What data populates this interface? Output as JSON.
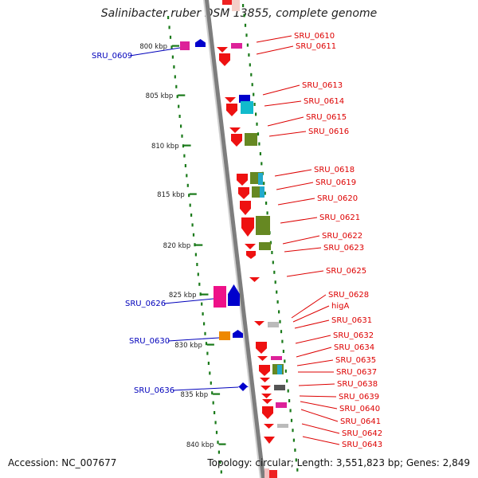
{
  "title": "Salinibacter ruber DSM 13855, complete genome",
  "footer": {
    "accession": "Accession: NC_007677",
    "summary": "Topology: circular; Length: 3,551,823 bp; Genes: 2,849"
  },
  "colors": {
    "forward_label": "#0000bb",
    "reverse_label": "#dd0000",
    "tick": "#1a7a1a",
    "backbone": "#888888"
  },
  "kbp_ticks": [
    "800 kbp",
    "805 kbp",
    "810 kbp",
    "815 kbp",
    "820 kbp",
    "825 kbp",
    "830 kbp",
    "835 kbp",
    "840 kbp"
  ],
  "genes_forward": [
    {
      "label": "SRU_0609",
      "color": "#dd2299"
    },
    {
      "label": "SRU_0626",
      "color": "#ee1188"
    },
    {
      "label": "SRU_0630",
      "color": "#ee8800"
    },
    {
      "label": "SRU_0636",
      "color": "#0000cc"
    }
  ],
  "genes_reverse": [
    "SRU_0610",
    "SRU_0611",
    "SRU_0613",
    "SRU_0614",
    "SRU_0615",
    "SRU_0616",
    "SRU_0618",
    "SRU_0619",
    "SRU_0620",
    "SRU_0621",
    "SRU_0622",
    "SRU_0623",
    "SRU_0625",
    "SRU_0628",
    "higA",
    "SRU_0631",
    "SRU_0632",
    "SRU_0634",
    "SRU_0635",
    "SRU_0637",
    "SRU_0638",
    "SRU_0639",
    "SRU_0640",
    "SRU_0641",
    "SRU_0642",
    "SRU_0643"
  ]
}
